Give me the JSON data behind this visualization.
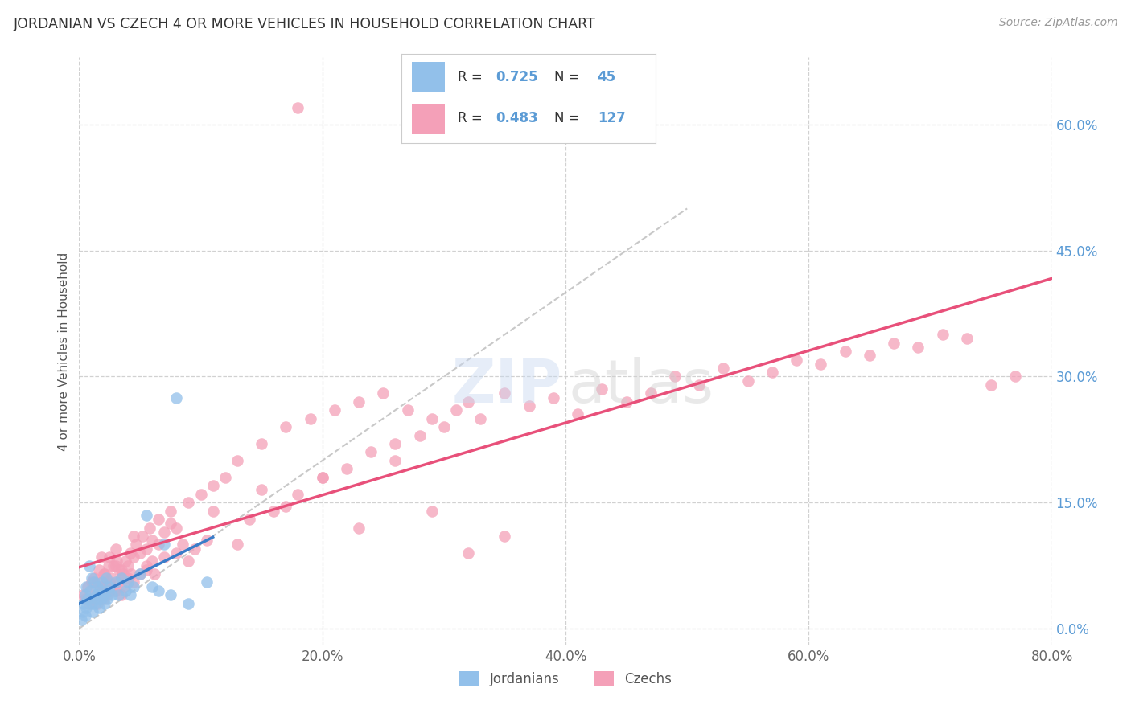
{
  "title": "JORDANIAN VS CZECH 4 OR MORE VEHICLES IN HOUSEHOLD CORRELATION CHART",
  "source": "Source: ZipAtlas.com",
  "ylabel": "4 or more Vehicles in Household",
  "xlim": [
    0.0,
    80.0
  ],
  "ylim": [
    -2.0,
    68.0
  ],
  "xtick_vals": [
    0.0,
    20.0,
    40.0,
    60.0,
    80.0
  ],
  "ytick_right_vals": [
    0.0,
    15.0,
    30.0,
    45.0,
    60.0
  ],
  "jordanian_R": 0.725,
  "jordanian_N": 45,
  "czech_R": 0.483,
  "czech_N": 127,
  "jordanian_color": "#92C0EA",
  "czech_color": "#F4A0B8",
  "jordanian_line_color": "#3A7DC9",
  "czech_line_color": "#E8507A",
  "grid_color": "#CCCCCC",
  "title_color": "#333333",
  "source_color": "#999999",
  "right_label_color": "#5B9BD5",
  "diag_line_color": "#BBBBBB",
  "jordanian_x": [
    0.2,
    0.3,
    0.4,
    0.5,
    0.5,
    0.6,
    0.6,
    0.7,
    0.8,
    0.9,
    1.0,
    1.0,
    1.1,
    1.2,
    1.3,
    1.4,
    1.5,
    1.5,
    1.6,
    1.7,
    1.8,
    1.9,
    2.0,
    2.1,
    2.2,
    2.3,
    2.4,
    2.5,
    2.7,
    3.0,
    3.2,
    3.5,
    3.8,
    4.0,
    4.2,
    4.5,
    5.0,
    5.5,
    6.0,
    6.5,
    7.0,
    7.5,
    8.0,
    9.0,
    10.5
  ],
  "jordanian_y": [
    1.0,
    2.0,
    3.0,
    4.0,
    1.5,
    5.0,
    2.5,
    3.5,
    7.5,
    4.5,
    3.0,
    6.0,
    2.0,
    5.5,
    3.0,
    4.0,
    5.0,
    3.5,
    2.5,
    4.5,
    3.5,
    5.5,
    4.0,
    3.0,
    6.0,
    3.5,
    4.5,
    5.0,
    4.0,
    5.5,
    4.0,
    6.0,
    4.5,
    5.5,
    4.0,
    5.0,
    6.5,
    13.5,
    5.0,
    4.5,
    10.0,
    4.0,
    27.5,
    3.0,
    5.5
  ],
  "czech_x": [
    0.3,
    0.5,
    0.7,
    0.8,
    1.0,
    1.0,
    1.2,
    1.3,
    1.5,
    1.5,
    1.6,
    1.7,
    1.8,
    1.9,
    2.0,
    2.0,
    2.1,
    2.2,
    2.3,
    2.4,
    2.5,
    2.5,
    2.6,
    2.7,
    2.8,
    2.9,
    3.0,
    3.0,
    3.1,
    3.2,
    3.3,
    3.5,
    3.5,
    3.6,
    3.7,
    3.8,
    4.0,
    4.0,
    4.2,
    4.3,
    4.5,
    4.5,
    4.7,
    5.0,
    5.0,
    5.2,
    5.5,
    5.5,
    5.8,
    6.0,
    6.0,
    6.2,
    6.5,
    7.0,
    7.0,
    7.5,
    8.0,
    8.0,
    8.5,
    9.0,
    9.5,
    10.0,
    10.5,
    11.0,
    12.0,
    13.0,
    14.0,
    15.0,
    16.0,
    17.0,
    18.0,
    19.0,
    20.0,
    21.0,
    22.0,
    23.0,
    24.0,
    25.0,
    26.0,
    27.0,
    28.0,
    29.0,
    30.0,
    31.0,
    32.0,
    33.0,
    35.0,
    37.0,
    39.0,
    41.0,
    43.0,
    45.0,
    47.0,
    49.0,
    51.0,
    53.0,
    55.0,
    57.0,
    59.0,
    61.0,
    63.0,
    65.0,
    67.0,
    69.0,
    71.0,
    73.0,
    75.0,
    77.0,
    2.0,
    2.5,
    3.0,
    3.5,
    4.5,
    5.5,
    6.5,
    7.5,
    9.0,
    11.0,
    13.0,
    15.0,
    17.0,
    20.0,
    23.0,
    26.0,
    29.0,
    32.0,
    35.0
  ],
  "czech_y": [
    4.0,
    3.5,
    5.0,
    3.0,
    5.5,
    3.5,
    6.0,
    4.0,
    5.5,
    3.0,
    7.0,
    5.0,
    8.5,
    4.5,
    5.0,
    3.5,
    6.5,
    5.5,
    4.0,
    7.5,
    5.5,
    4.5,
    6.0,
    5.0,
    7.5,
    4.5,
    7.5,
    4.5,
    8.0,
    5.5,
    7.0,
    7.0,
    4.0,
    6.5,
    5.0,
    8.0,
    6.0,
    7.5,
    9.0,
    6.5,
    5.5,
    8.5,
    10.0,
    6.5,
    9.0,
    11.0,
    7.0,
    9.5,
    12.0,
    8.0,
    10.5,
    6.5,
    13.0,
    8.5,
    11.5,
    14.0,
    9.0,
    12.0,
    10.0,
    15.0,
    9.5,
    16.0,
    10.5,
    17.0,
    18.0,
    20.0,
    13.0,
    22.0,
    14.0,
    24.0,
    16.0,
    25.0,
    18.0,
    26.0,
    19.0,
    27.0,
    21.0,
    28.0,
    22.0,
    26.0,
    23.0,
    25.0,
    24.0,
    26.0,
    27.0,
    25.0,
    28.0,
    26.5,
    27.5,
    25.5,
    28.5,
    27.0,
    28.0,
    30.0,
    29.0,
    31.0,
    29.5,
    30.5,
    32.0,
    31.5,
    33.0,
    32.5,
    34.0,
    33.5,
    35.0,
    34.5,
    29.0,
    30.0,
    6.5,
    8.5,
    9.5,
    6.0,
    11.0,
    7.5,
    10.0,
    12.5,
    8.0,
    14.0,
    10.0,
    16.5,
    14.5,
    18.0,
    12.0,
    20.0,
    14.0,
    9.0,
    11.0
  ],
  "czech_outlier_x": [
    18.0
  ],
  "czech_outlier_y": [
    62.0
  ]
}
